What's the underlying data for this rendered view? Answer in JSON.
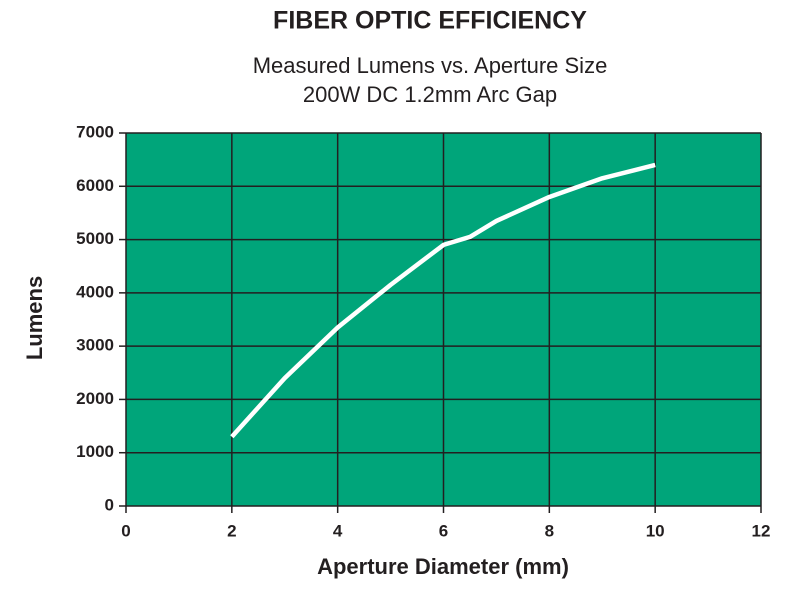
{
  "chart_data": {
    "type": "line",
    "title": "FIBER OPTIC EFFICIENCY",
    "subtitle": [
      "Measured Lumens vs. Aperture Size",
      "200W DC 1.2mm Arc Gap"
    ],
    "x_label": "Aperture Diameter (mm)",
    "y_label": "Lumens",
    "x": [
      2,
      3,
      4,
      5,
      6,
      6.5,
      7,
      8,
      9,
      10
    ],
    "series": [
      {
        "name": "Lumens",
        "color": "#ffffff",
        "values": [
          1300,
          2400,
          3350,
          4150,
          4900,
          5050,
          5350,
          5800,
          6150,
          6400
        ]
      }
    ],
    "xlim": [
      0,
      12
    ],
    "xticks": [
      0,
      2,
      4,
      6,
      8,
      10,
      12
    ],
    "ylim": [
      0,
      7000
    ],
    "yticks": [
      0,
      1000,
      2000,
      3000,
      4000,
      5000,
      6000,
      7000
    ],
    "grid": true,
    "background": "#00a57a"
  }
}
